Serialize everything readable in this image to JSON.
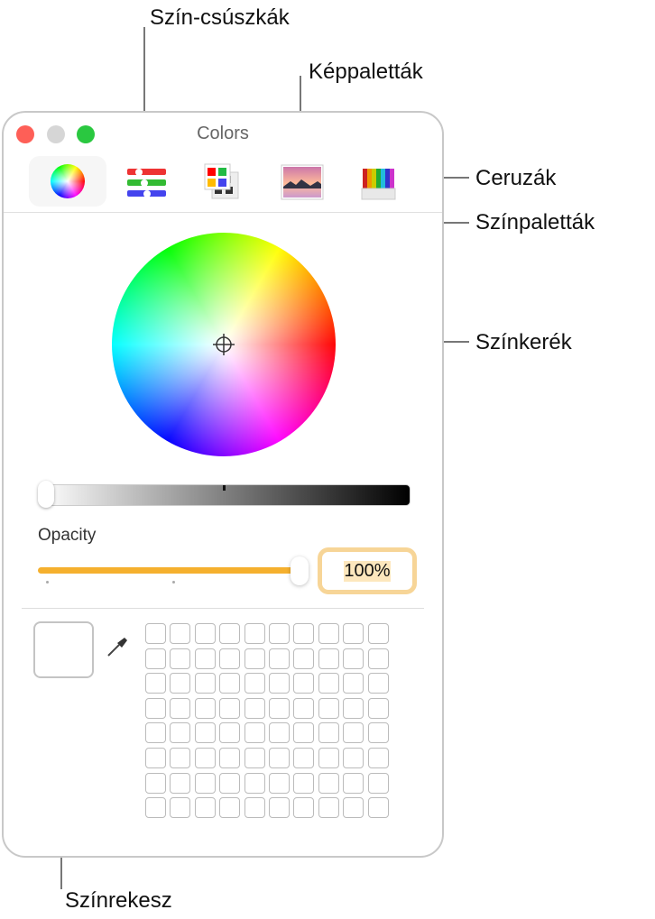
{
  "callouts": {
    "sliders": "Szín-csúszkák",
    "image_palettes": "Képpaletták",
    "pencils": "Ceruzák",
    "color_palettes": "Színpaletták",
    "color_wheel": "Színkerék",
    "color_well": "Színrekesz"
  },
  "window": {
    "title": "Colors"
  },
  "toolbar": [
    "color-wheel",
    "color-sliders",
    "color-palettes",
    "image-palettes",
    "pencils"
  ],
  "opacity": {
    "label": "Opacity",
    "value": "100%",
    "fraction": 1.0
  },
  "brightness_fraction": 0.0,
  "colors": {
    "accent": "#f5b02e",
    "close": "#fe5f57",
    "minimize": "#d6d6d6",
    "zoom": "#2ac840"
  },
  "swatch_grid": {
    "columns": 10,
    "rows": 8
  }
}
